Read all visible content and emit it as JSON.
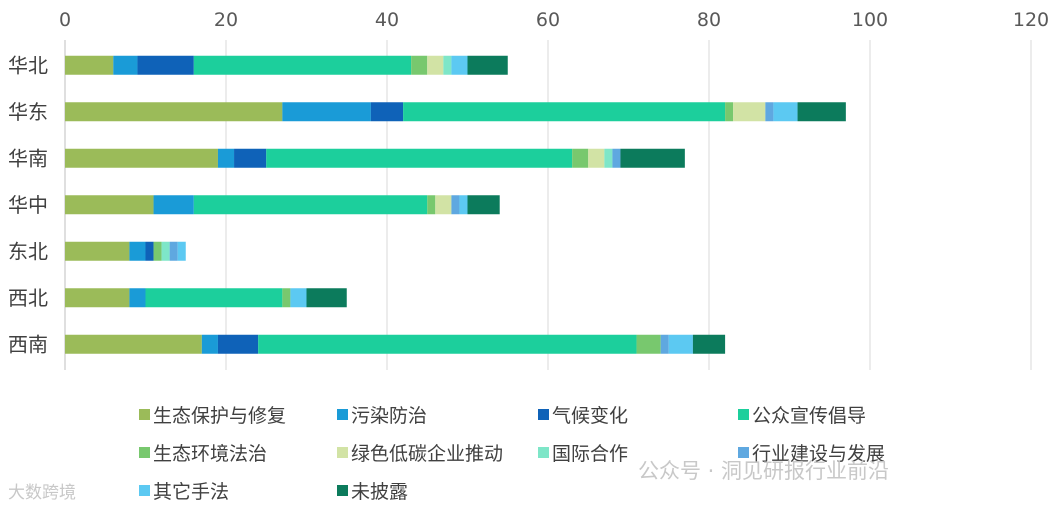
{
  "chart_data": {
    "type": "bar",
    "orientation": "horizontal",
    "stacked": true,
    "categories": [
      "华北",
      "华东",
      "华南",
      "华中",
      "东北",
      "西北",
      "西南"
    ],
    "xlim": [
      0,
      120
    ],
    "xticks": [
      "0",
      "20",
      "40",
      "60",
      "80",
      "100",
      "120"
    ],
    "grid": true,
    "legend_position": "bottom",
    "series": [
      {
        "name": "生态保护与修复",
        "color": "#9bbb59",
        "values": [
          6,
          27,
          19,
          11,
          8,
          8,
          17
        ]
      },
      {
        "name": "污染防治",
        "color": "#1a9bd7",
        "values": [
          3,
          11,
          2,
          5,
          2,
          2,
          2
        ]
      },
      {
        "name": "气候变化",
        "color": "#0f62b8",
        "values": [
          7,
          4,
          4,
          0,
          1,
          0,
          5
        ]
      },
      {
        "name": "公众宣传倡导",
        "color": "#1ccf9c",
        "values": [
          27,
          40,
          38,
          29,
          0,
          17,
          47
        ]
      },
      {
        "name": "生态环境法治",
        "color": "#78c86e",
        "values": [
          2,
          1,
          2,
          1,
          1,
          1,
          3
        ]
      },
      {
        "name": "绿色低碳企业推动",
        "color": "#d2e3a5",
        "values": [
          2,
          4,
          2,
          2,
          0,
          0,
          0
        ]
      },
      {
        "name": "国际合作",
        "color": "#7ee6c8",
        "values": [
          1,
          0,
          1,
          0,
          1,
          0,
          0
        ]
      },
      {
        "name": "行业建设与发展",
        "color": "#5fa8e0",
        "values": [
          0,
          1,
          1,
          1,
          1,
          0,
          1
        ]
      },
      {
        "name": "其它手法",
        "color": "#5cc9f2",
        "values": [
          2,
          3,
          0,
          1,
          1,
          2,
          3
        ]
      },
      {
        "name": "未披露",
        "color": "#0c7b5c",
        "values": [
          5,
          6,
          8,
          4,
          0,
          5,
          4
        ]
      }
    ]
  },
  "watermarks": {
    "text_1": "公众号 · 洞见研报行业前沿",
    "text_2": "大数跨境"
  }
}
